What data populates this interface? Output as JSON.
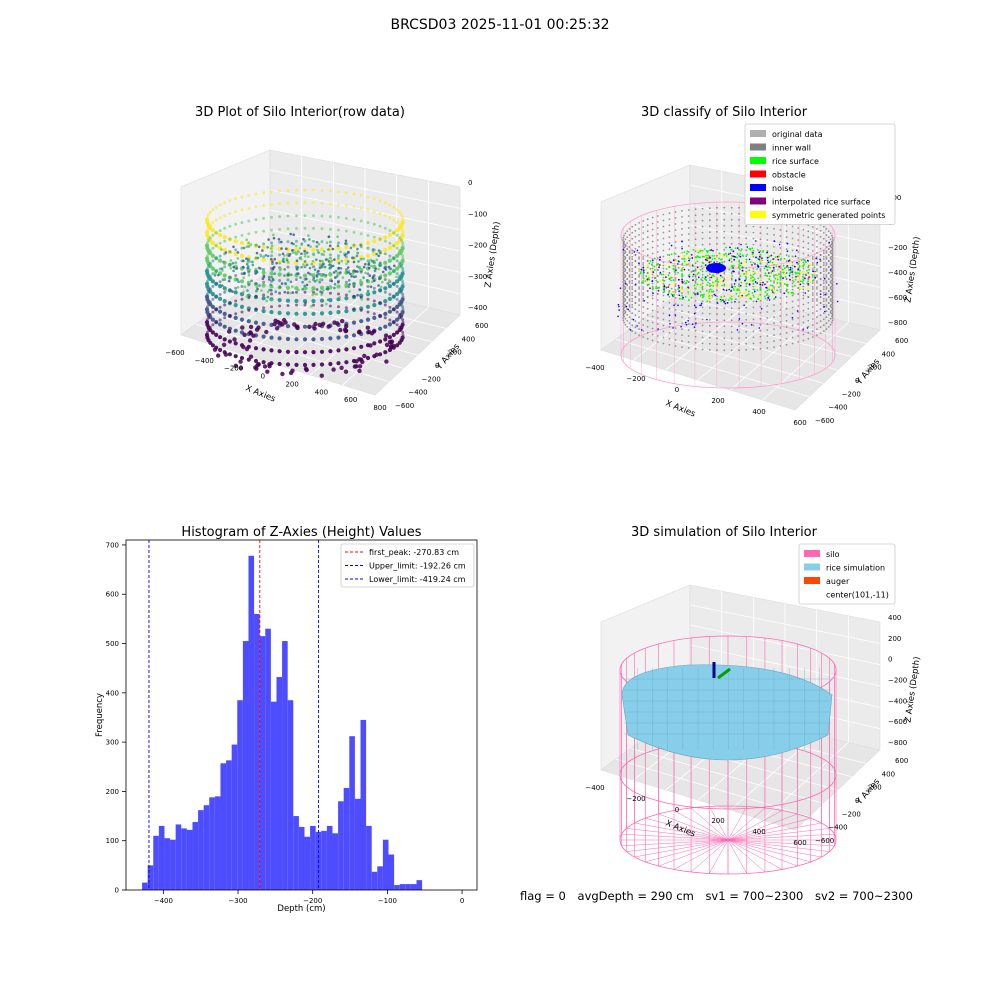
{
  "figure": {
    "title": "BRCSD03 2025-11-01 00:25:32",
    "footer": {
      "flag": "flag = 0",
      "avg_depth": "avgDepth = 290 cm",
      "sv1": "sv1 = 700~2300",
      "sv2": "sv2 = 700~2300"
    }
  },
  "chart_data": [
    {
      "type": "scatter",
      "projection": "3d",
      "title": "3D Plot of Silo Interior(row data)",
      "xlabel": "X Axies",
      "ylabel": "Y Axies",
      "zlabel": "Z Axies (Depth)",
      "x_ticks": [
        "−600",
        "−400",
        "−200",
        "0",
        "200",
        "400",
        "600",
        "800"
      ],
      "y_ticks": [
        "−600",
        "−400",
        "−200",
        "0",
        "200",
        "400",
        "600"
      ],
      "z_ticks": [
        "−400",
        "−300",
        "−200",
        "−100",
        "0"
      ],
      "colormap": "viridis",
      "colors": [
        "#440154",
        "#3b528b",
        "#21918c",
        "#5ec962",
        "#fde725"
      ],
      "zlim": [
        -450,
        0
      ],
      "silo_radius": 520
    },
    {
      "type": "scatter",
      "projection": "3d",
      "title": "3D classify of Silo Interior",
      "xlabel": "X Axies",
      "ylabel": "Y Axies",
      "zlabel": "Z Axies (Depth)",
      "x_ticks": [
        "−400",
        "−200",
        "0",
        "200",
        "400",
        "600"
      ],
      "y_ticks": [
        "−600",
        "−400",
        "−200",
        "0",
        "200",
        "400",
        "600"
      ],
      "z_ticks": [
        "−800",
        "−600",
        "−400",
        "−200",
        "0",
        "200"
      ],
      "legend": [
        {
          "label": "original data",
          "color": "#b0b0b0"
        },
        {
          "label": "inner wall",
          "color": "#808080"
        },
        {
          "label": "rice surface",
          "color": "#00ff00"
        },
        {
          "label": "obstacle",
          "color": "#ff0000"
        },
        {
          "label": "noise",
          "color": "#0000ff"
        },
        {
          "label": "interpolated rice surface",
          "color": "#800080"
        },
        {
          "label": "symmetric generated points",
          "color": "#ffff00"
        }
      ],
      "legend_position": "top-right",
      "silo_color": "#ff9fcf"
    },
    {
      "type": "bar",
      "title": "Histogram of Z-Axies (Height) Values",
      "xlabel": "Depth (cm)",
      "ylabel": "Frequency",
      "xlim": [
        -450,
        20
      ],
      "ylim": [
        0,
        710
      ],
      "x_ticks": [
        -400,
        -300,
        -200,
        -100,
        0
      ],
      "x_tick_labels": [
        "−400",
        "−300",
        "−200",
        "−100",
        "0"
      ],
      "y_ticks": [
        0,
        100,
        200,
        300,
        400,
        500,
        600,
        700
      ],
      "bar_color": "#4d4dff",
      "bins": [
        [
          -428.5,
          -421,
          15
        ],
        [
          -421,
          -413.5,
          50
        ],
        [
          -413.5,
          -406,
          110
        ],
        [
          -406,
          -398.5,
          130
        ],
        [
          -398.5,
          -391,
          105
        ],
        [
          -391,
          -383.5,
          102
        ],
        [
          -383.5,
          -376,
          133
        ],
        [
          -376,
          -368.5,
          125
        ],
        [
          -368.5,
          -361,
          122
        ],
        [
          -361,
          -353.5,
          138
        ],
        [
          -353.5,
          -346,
          162
        ],
        [
          -346,
          -338.5,
          172
        ],
        [
          -338.5,
          -331,
          188
        ],
        [
          -331,
          -323.5,
          190
        ],
        [
          -323.5,
          -316,
          257
        ],
        [
          -316,
          -308.5,
          263
        ],
        [
          -308.5,
          -301,
          295
        ],
        [
          -301,
          -293.5,
          385
        ],
        [
          -293.5,
          -286,
          505
        ],
        [
          -286,
          -278.5,
          678
        ],
        [
          -278.5,
          -271,
          560
        ],
        [
          -271,
          -263.5,
          515
        ],
        [
          -263.5,
          -256,
          530
        ],
        [
          -256,
          -248.5,
          382
        ],
        [
          -248.5,
          -241,
          432
        ],
        [
          -241,
          -233.5,
          505
        ],
        [
          -233.5,
          -226,
          385
        ],
        [
          -226,
          -218.5,
          150
        ],
        [
          -218.5,
          -211,
          128
        ],
        [
          -211,
          -203.5,
          108
        ],
        [
          -203.5,
          -196,
          130
        ],
        [
          -196,
          -188.5,
          118
        ],
        [
          -188.5,
          -181,
          120
        ],
        [
          -181,
          -173.5,
          130
        ],
        [
          -173.5,
          -166,
          115
        ],
        [
          -166,
          -158.5,
          180
        ],
        [
          -158.5,
          -151,
          207
        ],
        [
          -151,
          -143.5,
          312
        ],
        [
          -143.5,
          -136,
          185
        ],
        [
          -136,
          -128.5,
          345
        ],
        [
          -128.5,
          -121,
          130
        ],
        [
          -121,
          -113.5,
          37
        ],
        [
          -113.5,
          -106,
          48
        ],
        [
          -106,
          -98.5,
          102
        ],
        [
          -98.5,
          -91,
          72
        ],
        [
          -91,
          -83.5,
          10
        ],
        [
          -83.5,
          -76,
          12
        ],
        [
          -76,
          -68.5,
          12
        ],
        [
          -68.5,
          -61,
          12
        ],
        [
          -61,
          -53.5,
          20
        ]
      ],
      "vlines": [
        {
          "label": "first_peak: -270.83 cm",
          "x": -270.83,
          "color": "#ff0000"
        },
        {
          "label": "Upper_limit: -192.26 cm",
          "x": -192.26,
          "color": "#0000ff"
        },
        {
          "label": "Lower_limit: -419.24 cm",
          "x": -419.24,
          "color": "#0000ff"
        }
      ],
      "legend_position": "top-right"
    },
    {
      "type": "surface",
      "projection": "3d",
      "title": "3D simulation of Silo Interior",
      "xlabel": "X Axies",
      "ylabel": "Y Axies",
      "zlabel": "Z Axies (Depth)",
      "x_ticks": [
        "−400",
        "−200",
        "0",
        "200",
        "400",
        "600"
      ],
      "y_ticks": [
        "−600",
        "−400",
        "−200",
        "0",
        "200",
        "400",
        "600"
      ],
      "z_ticks": [
        "−800",
        "−600",
        "−400",
        "−200",
        "0",
        "200",
        "400"
      ],
      "legend": [
        {
          "label": "silo",
          "color": "#ff69b4"
        },
        {
          "label": "rice simulation",
          "color": "#87ceeb"
        },
        {
          "label": "auger",
          "color": "#ff4500"
        },
        {
          "label": "center(101,-11)",
          "color": ""
        }
      ],
      "legend_position": "top-right"
    }
  ]
}
